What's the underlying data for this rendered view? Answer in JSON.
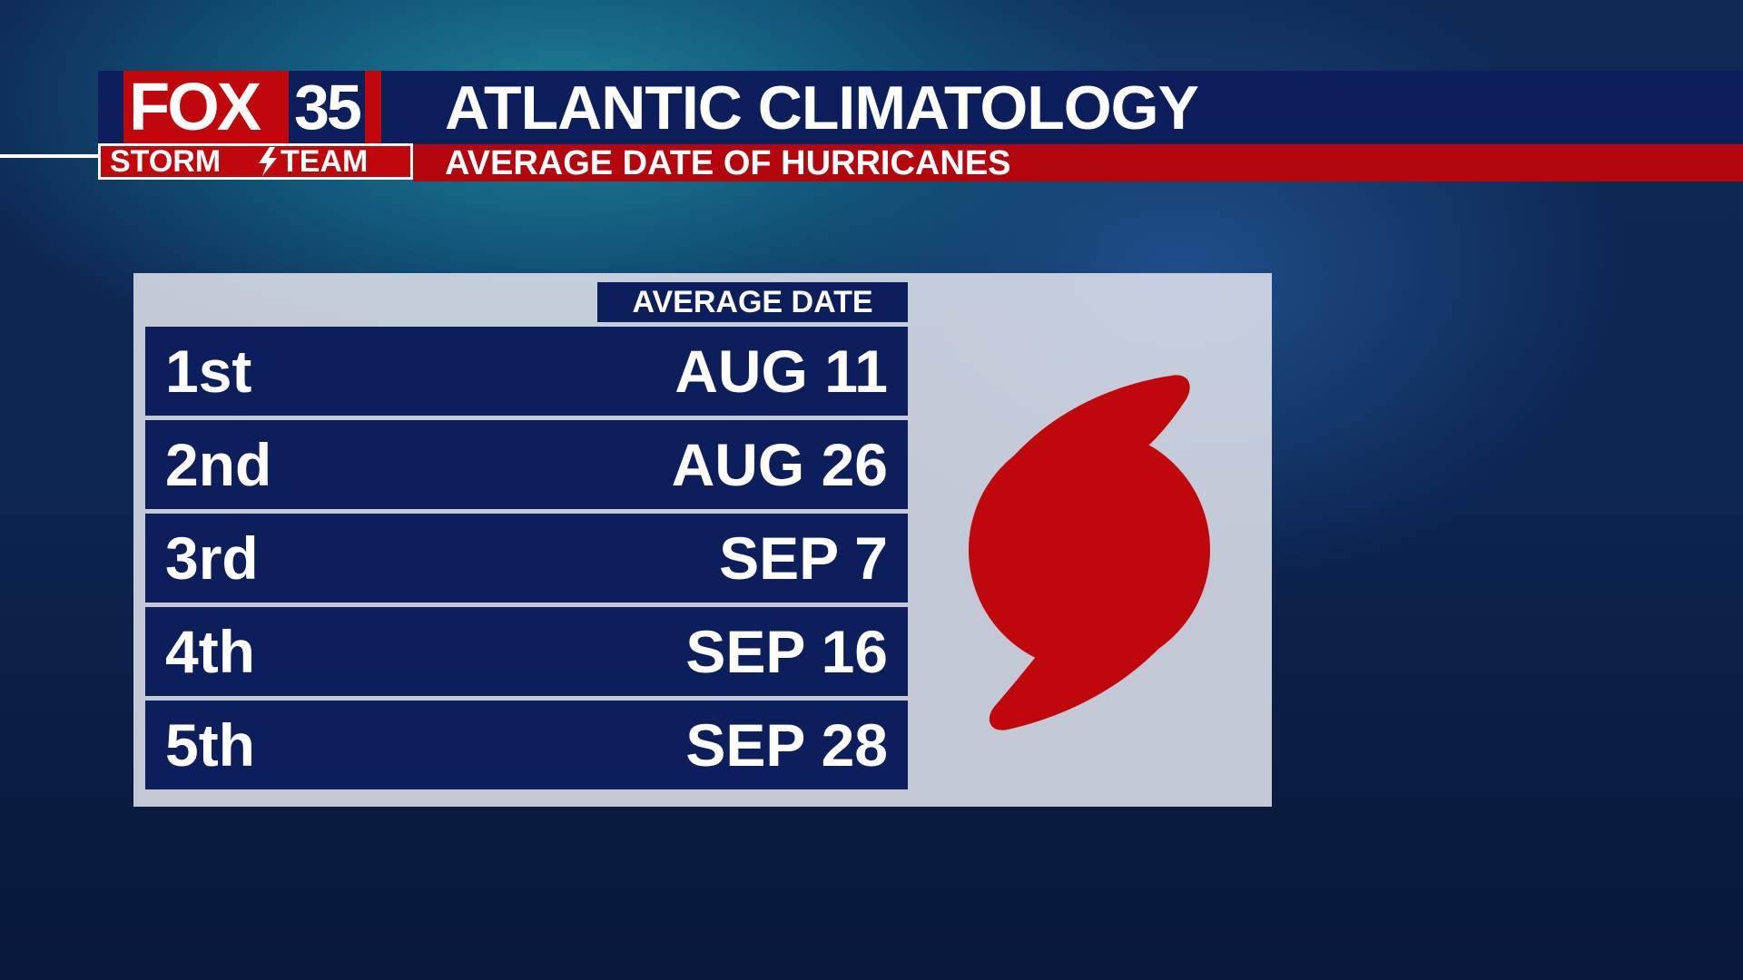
{
  "header": {
    "logo": {
      "brand": "FOX",
      "channel": "35",
      "team_left": "STORM",
      "team_right": "TEAM"
    },
    "title": "ATLANTIC CLIMATOLOGY",
    "subtitle": "AVERAGE DATE OF HURRICANES"
  },
  "table": {
    "column_header": "AVERAGE DATE",
    "rows": [
      [
        "1st",
        "AUG 11"
      ],
      [
        "2nd",
        "AUG 26"
      ],
      [
        "3rd",
        "SEP 7"
      ],
      [
        "4th",
        "SEP 16"
      ],
      [
        "5th",
        "SEP 28"
      ]
    ]
  }
}
